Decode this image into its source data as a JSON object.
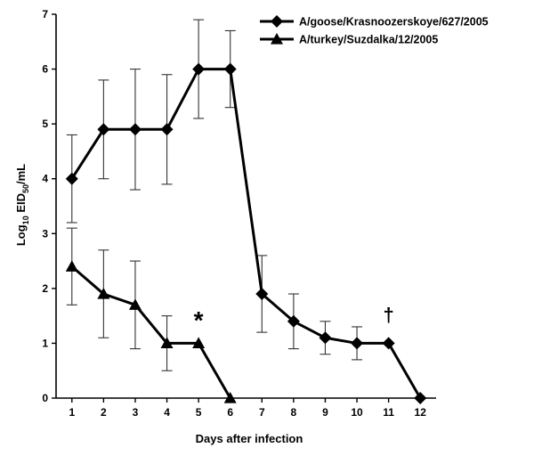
{
  "chart_data": {
    "type": "line",
    "xlabel": "Days after infection",
    "ylabel": "Log10 EID50/mL",
    "ylabel_parts": {
      "pre": "Log",
      "sub1": "10",
      "mid": " EID",
      "sub2": "50",
      "post": "/mL"
    },
    "x": [
      1,
      2,
      3,
      4,
      5,
      6,
      7,
      8,
      9,
      10,
      11,
      12
    ],
    "xlim": [
      0.5,
      12.5
    ],
    "ylim": [
      0,
      7
    ],
    "xticks": [
      "1",
      "2",
      "3",
      "4",
      "5",
      "6",
      "7",
      "8",
      "9",
      "10",
      "11",
      "12"
    ],
    "yticks": [
      "0",
      "1",
      "2",
      "3",
      "4",
      "5",
      "6",
      "7"
    ],
    "grid": false,
    "legend_placement": "top-right",
    "series": [
      {
        "name": "A/goose/Krasnoozerskoye/627/2005",
        "marker": "diamond",
        "x": [
          1,
          2,
          3,
          4,
          5,
          6,
          7,
          8,
          9,
          10,
          11,
          12
        ],
        "y": [
          4.0,
          4.9,
          4.9,
          4.9,
          6.0,
          6.0,
          1.9,
          1.4,
          1.1,
          1.0,
          1.0,
          0.0
        ],
        "err": [
          0.8,
          0.9,
          1.1,
          1.0,
          0.9,
          0.7,
          0.7,
          0.5,
          0.3,
          0.3,
          0,
          0
        ]
      },
      {
        "name": "A/turkey/Suzdalka/12/2005",
        "marker": "triangle",
        "x": [
          1,
          2,
          3,
          4,
          5,
          6
        ],
        "y": [
          2.4,
          1.9,
          1.7,
          1.0,
          1.0,
          0.0
        ],
        "err": [
          0.7,
          0.8,
          0.8,
          0.5,
          0,
          0
        ]
      }
    ],
    "annotations": [
      {
        "text": "*",
        "x": 5,
        "y": 1.4
      },
      {
        "text": "†",
        "x": 11,
        "y": 1.4
      }
    ]
  }
}
